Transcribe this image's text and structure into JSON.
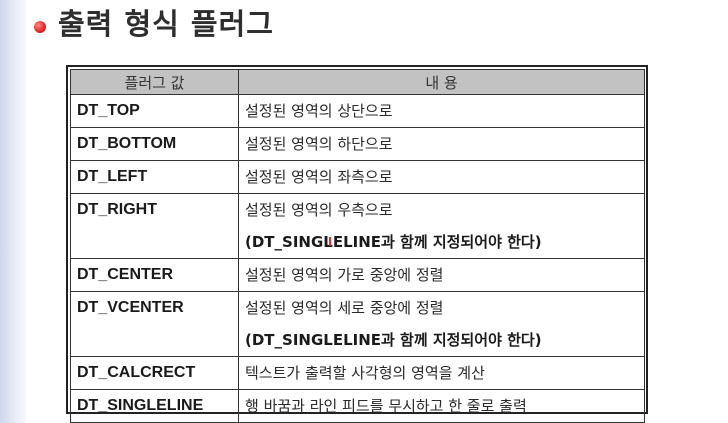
{
  "page": {
    "title": "출력 형식 플러그"
  },
  "table": {
    "headers": [
      "플러그 값",
      "내 용"
    ],
    "rows": [
      {
        "flag": "DT_TOP",
        "lines": [
          "설정된 영역의 상단으로"
        ]
      },
      {
        "flag": "DT_BOTTOM",
        "lines": [
          "설정된 영역의 하단으로"
        ]
      },
      {
        "flag": "DT_LEFT",
        "lines": [
          "설정된 영역의 좌측으로"
        ]
      },
      {
        "flag": "DT_RIGHT",
        "lines": [
          "설정된 영역의 우측으로",
          "(DT_SINGLELINE과 함께 지정되어야 한다)"
        ]
      },
      {
        "flag": "DT_CENTER",
        "lines": [
          "설정된 영역의 가로 중앙에 정렬"
        ]
      },
      {
        "flag": "DT_VCENTER",
        "lines": [
          "설정된 영역의 세로 중앙에 정렬",
          "(DT_SINGLELINE과 함께 지정되어야 한다)"
        ]
      },
      {
        "flag": "DT_CALCRECT",
        "lines": [
          "텍스트가 출력할 사각형의 영역을 계산"
        ]
      },
      {
        "flag": "DT_SINGLELINE",
        "lines": [
          "행 바꿈과 라인 피드를 무시하고 한 줄로 출력"
        ]
      }
    ]
  },
  "colors": {
    "bullet": "#e02424",
    "header_bg": "#c2c2c2",
    "cursor_mark": "#d63030"
  }
}
